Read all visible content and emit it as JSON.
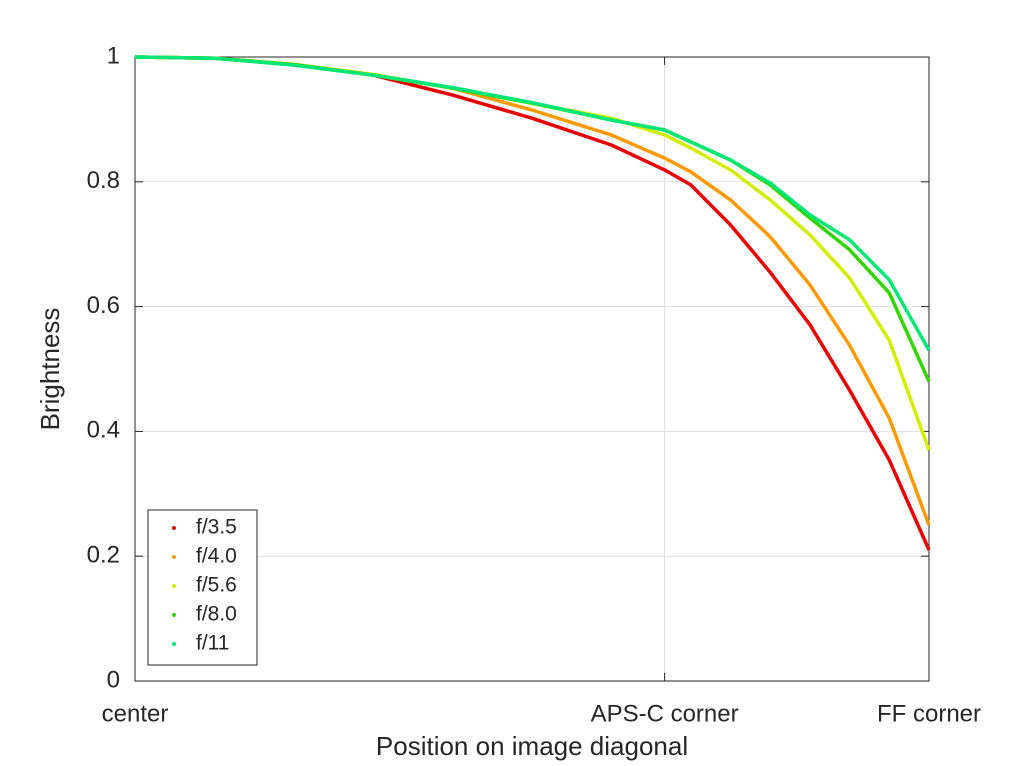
{
  "chart_data": {
    "type": "line",
    "x_label": "Position on image diagonal",
    "y_label": "Brightness",
    "x": [
      0,
      0.1,
      0.2,
      0.3,
      0.4,
      0.5,
      0.6,
      0.667,
      0.7,
      0.75,
      0.8,
      0.85,
      0.9,
      0.95,
      1.0
    ],
    "series": [
      {
        "name": "f/3.5",
        "color": "#e60000",
        "values": [
          1.0,
          0.998,
          0.988,
          0.971,
          0.939,
          0.902,
          0.859,
          0.819,
          0.795,
          0.731,
          0.655,
          0.571,
          0.466,
          0.354,
          0.21
        ]
      },
      {
        "name": "f/4.0",
        "color": "#ff9900",
        "values": [
          1.0,
          0.998,
          0.988,
          0.972,
          0.95,
          0.915,
          0.875,
          0.838,
          0.816,
          0.771,
          0.712,
          0.635,
          0.538,
          0.421,
          0.25
        ]
      },
      {
        "name": "f/5.6",
        "color": "#d4ec00",
        "values": [
          1.0,
          0.998,
          0.988,
          0.972,
          0.95,
          0.926,
          0.902,
          0.875,
          0.854,
          0.819,
          0.771,
          0.715,
          0.646,
          0.546,
          0.37
        ]
      },
      {
        "name": "f/8.0",
        "color": "#33d400",
        "values": [
          1.0,
          0.998,
          0.988,
          0.971,
          0.95,
          0.926,
          0.899,
          0.883,
          0.864,
          0.835,
          0.795,
          0.742,
          0.691,
          0.622,
          0.48
        ]
      },
      {
        "name": "f/11",
        "color": "#00e676",
        "values": [
          1.0,
          0.998,
          0.987,
          0.971,
          0.951,
          0.927,
          0.899,
          0.883,
          0.864,
          0.835,
          0.798,
          0.747,
          0.707,
          0.643,
          0.53
        ]
      }
    ],
    "xlim": [
      0,
      1
    ],
    "xticks": [
      {
        "value": 0,
        "label": "center"
      },
      {
        "value": 0.667,
        "label": "APS-C corner"
      },
      {
        "value": 1,
        "label": "FF corner"
      }
    ],
    "ylim": [
      0,
      1
    ],
    "yticks": [
      0,
      0.2,
      0.4,
      0.6,
      0.8,
      1
    ],
    "grid": true,
    "legend": "lower left"
  }
}
